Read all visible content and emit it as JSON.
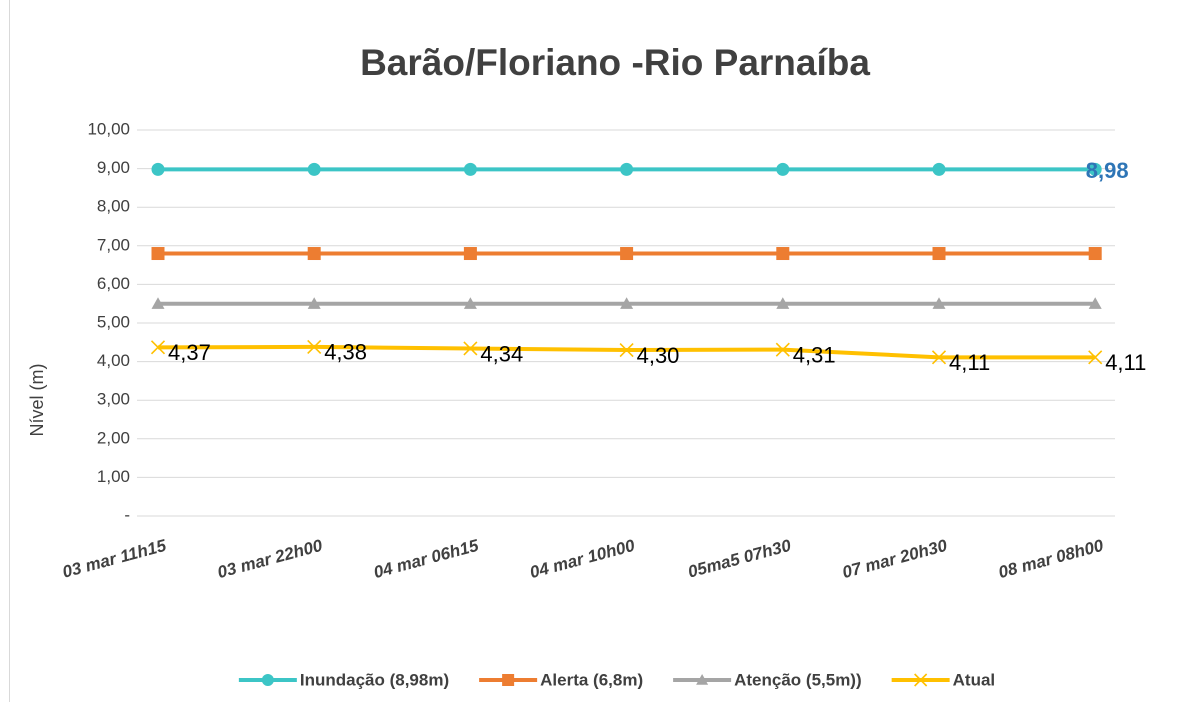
{
  "chart_data": {
    "type": "line",
    "title": "Barão/Floriano -Rio Parnaíba",
    "y_label": "Nível (m)",
    "categories": [
      "03 mar 11h15",
      "03 mar 22h00",
      "04 mar 06h15",
      "04 mar 10h00",
      "05ma5 07h30",
      "07 mar 20h30",
      "08 mar 08h00"
    ],
    "series": [
      {
        "name": "Inundação (8,98m)",
        "color": "#3cc5c6",
        "marker": "circle",
        "values": [
          8.98,
          8.98,
          8.98,
          8.98,
          8.98,
          8.98,
          8.98
        ],
        "value_labels": [
          null,
          null,
          null,
          null,
          null,
          null,
          "8,98"
        ],
        "label_color": "#2e75b6"
      },
      {
        "name": "Alerta (6,8m)",
        "color": "#ed7d31",
        "marker": "square",
        "values": [
          6.8,
          6.8,
          6.8,
          6.8,
          6.8,
          6.8,
          6.8
        ]
      },
      {
        "name": "Atenção (5,5m))",
        "color": "#a5a5a5",
        "marker": "triangle",
        "values": [
          5.5,
          5.5,
          5.5,
          5.5,
          5.5,
          5.5,
          5.5
        ]
      },
      {
        "name": "Atual",
        "color": "#ffc000",
        "marker": "x",
        "values": [
          4.37,
          4.38,
          4.34,
          4.3,
          4.31,
          4.11,
          4.11
        ],
        "value_labels": [
          "4,37",
          "4,38",
          "4,34",
          "4,30",
          "4,31",
          "4,11",
          "4,11"
        ],
        "label_color": "#000000"
      }
    ],
    "ylim": [
      0,
      10
    ],
    "yticks": [
      {
        "value": 0,
        "label": "-"
      },
      {
        "value": 1,
        "label": "1,00"
      },
      {
        "value": 2,
        "label": "2,00"
      },
      {
        "value": 3,
        "label": "3,00"
      },
      {
        "value": 4,
        "label": "4,00"
      },
      {
        "value": 5,
        "label": "5,00"
      },
      {
        "value": 6,
        "label": "6,00"
      },
      {
        "value": 7,
        "label": "7,00"
      },
      {
        "value": 8,
        "label": "8,00"
      },
      {
        "value": 9,
        "label": "9,00"
      },
      {
        "value": 10,
        "label": "10,00"
      }
    ],
    "grid": true,
    "legend": "bottom"
  }
}
